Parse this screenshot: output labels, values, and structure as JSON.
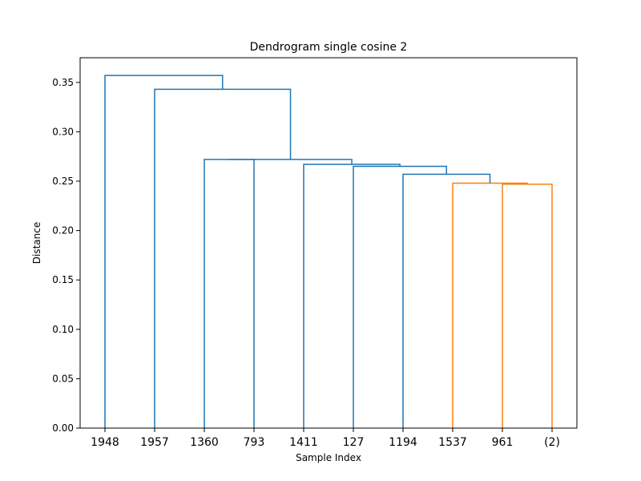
{
  "chart_data": {
    "type": "dendrogram",
    "title": "Dendrogram single cosine 2",
    "xlabel": "Sample Index",
    "ylabel": "Distance",
    "ylim": [
      0,
      0.375
    ],
    "yticks": [
      "0.00",
      "0.05",
      "0.10",
      "0.15",
      "0.20",
      "0.25",
      "0.30",
      "0.35"
    ],
    "leaves": [
      "1948",
      "1957",
      "1360",
      "793",
      "1411",
      "127",
      "1194",
      "1537",
      "961",
      "(2)"
    ],
    "colors": {
      "above_threshold": "#1f77b4",
      "cluster": "#ff7f0e"
    },
    "links": [
      {
        "left": 8,
        "right": 9,
        "height": 0.247,
        "color": "cluster"
      },
      {
        "left": 7,
        "right": 8.5,
        "height": 0.248,
        "color": "cluster"
      },
      {
        "left": 6,
        "right": 7.75,
        "height": 0.257,
        "color": "above_threshold"
      },
      {
        "left": 5,
        "right": 6.875,
        "height": 0.265,
        "color": "above_threshold"
      },
      {
        "left": 4,
        "right": 5.9375,
        "height": 0.267,
        "color": "above_threshold"
      },
      {
        "left": 2,
        "right": 3,
        "height": 0.272,
        "color": "above_threshold",
        "left_height": 0,
        "right_height": 0
      },
      {
        "left": 2.5,
        "right": 4.96875,
        "height": 0.272,
        "color": "above_threshold"
      },
      {
        "left": 1,
        "right": 3.734375,
        "height": 0.343,
        "color": "above_threshold"
      },
      {
        "left": 0,
        "right": 2.3671875,
        "height": 0.357,
        "color": "above_threshold"
      }
    ]
  }
}
